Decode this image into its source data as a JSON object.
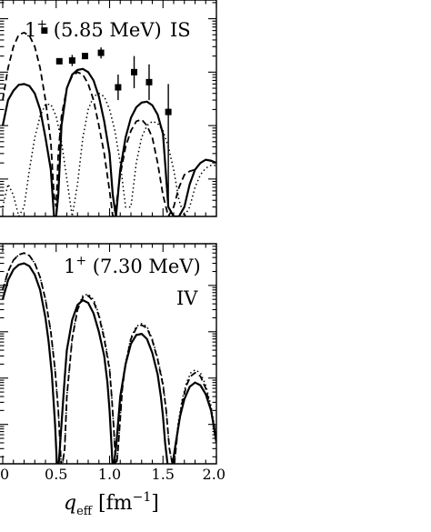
{
  "chart_data": [
    {
      "type": "line",
      "label_main": "1",
      "label_sup": "+",
      "label_rest": " (5.85 MeV)",
      "label_right": "IS",
      "x_range": [
        0.0,
        2.0
      ],
      "y_scale": "log",
      "series": [
        {
          "style": "solid",
          "x": [
            0.0,
            0.05,
            0.1,
            0.15,
            0.2,
            0.25,
            0.3,
            0.35,
            0.4,
            0.45,
            0.48,
            0.5,
            0.52,
            0.55,
            0.6,
            0.65,
            0.7,
            0.75,
            0.8,
            0.85,
            0.9,
            0.95,
            1.0,
            1.03,
            1.06,
            1.1,
            1.15,
            1.2,
            1.25,
            1.3,
            1.35,
            1.4,
            1.45,
            1.5,
            1.52,
            1.55,
            1.6,
            1.65,
            1.7,
            1.75,
            1.8,
            1.85,
            1.9,
            1.95,
            2.0
          ],
          "y": [
            0.01,
            0.03,
            0.045,
            0.058,
            0.06,
            0.055,
            0.04,
            0.02,
            0.006,
            0.0015,
            0.0002,
            0.0002,
            0.0005,
            0.01,
            0.05,
            0.09,
            0.11,
            0.115,
            0.1,
            0.07,
            0.035,
            0.012,
            0.003,
            0.0005,
            0.0002,
            0.0015,
            0.006,
            0.014,
            0.022,
            0.027,
            0.028,
            0.024,
            0.016,
            0.007,
            0.002,
            0.0003,
            0.0002,
            0.0002,
            0.0003,
            0.0008,
            0.0015,
            0.002,
            0.0023,
            0.0022,
            0.002
          ]
        },
        {
          "style": "dashed",
          "x": [
            0.0,
            0.05,
            0.1,
            0.15,
            0.2,
            0.25,
            0.3,
            0.35,
            0.4,
            0.45,
            0.48,
            0.5,
            0.52,
            0.55,
            0.6,
            0.65,
            0.7,
            0.75,
            0.8,
            0.85,
            0.9,
            0.95,
            1.0,
            1.03,
            1.06,
            1.1,
            1.15,
            1.2,
            1.25,
            1.3,
            1.35,
            1.4,
            1.45,
            1.5,
            1.55,
            1.6,
            1.65,
            1.7,
            1.75,
            1.8
          ],
          "y": [
            0.03,
            0.12,
            0.3,
            0.5,
            0.55,
            0.48,
            0.3,
            0.12,
            0.03,
            0.005,
            0.0005,
            0.0003,
            0.003,
            0.015,
            0.05,
            0.085,
            0.1,
            0.09,
            0.06,
            0.03,
            0.01,
            0.003,
            0.0006,
            0.0002,
            0.0003,
            0.0012,
            0.004,
            0.008,
            0.012,
            0.013,
            0.01,
            0.006,
            0.002,
            0.0005,
            0.0002,
            0.0003,
            0.0007,
            0.0012,
            0.0014,
            0.0015
          ]
        },
        {
          "style": "dotted",
          "x": [
            0.0,
            0.05,
            0.1,
            0.15,
            0.2,
            0.25,
            0.3,
            0.35,
            0.4,
            0.45,
            0.5,
            0.55,
            0.6,
            0.65,
            0.7,
            0.75,
            0.8,
            0.85,
            0.9,
            0.95,
            1.0,
            1.05,
            1.1,
            1.15,
            1.2,
            1.25,
            1.3,
            1.35,
            1.4,
            1.45,
            1.5,
            1.55,
            1.6,
            1.65,
            1.7,
            1.75,
            1.8,
            1.85,
            1.9,
            1.95,
            2.0
          ],
          "y": [
            0.0003,
            0.0008,
            0.0005,
            0.0002,
            0.0003,
            0.0015,
            0.006,
            0.015,
            0.025,
            0.025,
            0.015,
            0.005,
            0.001,
            0.0002,
            0.0008,
            0.006,
            0.02,
            0.035,
            0.04,
            0.035,
            0.02,
            0.008,
            0.002,
            0.0003,
            0.0003,
            0.002,
            0.006,
            0.01,
            0.012,
            0.011,
            0.008,
            0.004,
            0.0015,
            0.0004,
            0.0002,
            0.0003,
            0.0007,
            0.0012,
            0.0016,
            0.0018,
            0.0018
          ]
        }
      ],
      "data_points": [
        {
          "x": 0.39,
          "y": 0.6,
          "err": [
            0.54,
            0.67
          ]
        },
        {
          "x": 0.53,
          "y": 0.16,
          "err": [
            0.145,
            0.18
          ]
        },
        {
          "x": 0.65,
          "y": 0.165,
          "err": [
            0.13,
            0.21
          ]
        },
        {
          "x": 0.77,
          "y": 0.2,
          "err": [
            0.175,
            0.23
          ]
        },
        {
          "x": 0.92,
          "y": 0.23,
          "err": [
            0.18,
            0.29
          ]
        },
        {
          "x": 1.08,
          "y": 0.052,
          "err": [
            0.03,
            0.09
          ]
        },
        {
          "x": 1.23,
          "y": 0.1,
          "err": [
            0.05,
            0.2
          ]
        },
        {
          "x": 1.37,
          "y": 0.065,
          "err": [
            0.03,
            0.14
          ]
        },
        {
          "x": 1.55,
          "y": 0.018,
          "err": [
            0.0003,
            0.06
          ]
        }
      ]
    },
    {
      "type": "line",
      "label_main": "1",
      "label_sup": "+",
      "label_rest": " (7.30 MeV)",
      "label_right": "IV",
      "x_range": [
        0.0,
        2.0
      ],
      "y_scale": "log",
      "series": [
        {
          "style": "solid",
          "x": [
            0.0,
            0.05,
            0.1,
            0.15,
            0.2,
            0.25,
            0.3,
            0.35,
            0.4,
            0.43,
            0.46,
            0.49,
            0.51,
            0.52,
            0.55,
            0.58,
            0.6,
            0.65,
            0.7,
            0.75,
            0.8,
            0.85,
            0.9,
            0.95,
            0.98,
            1.0,
            1.02,
            1.03,
            1.06,
            1.1,
            1.15,
            1.2,
            1.25,
            1.3,
            1.35,
            1.4,
            1.45,
            1.48,
            1.5,
            1.52,
            1.55,
            1.58,
            1.62,
            1.66,
            1.7,
            1.75,
            1.8,
            1.85,
            1.9,
            1.95,
            1.98,
            2.0
          ],
          "y": [
            0.5,
            1.3,
            2.2,
            2.8,
            3.0,
            2.6,
            1.7,
            0.8,
            0.2,
            0.06,
            0.012,
            0.001,
            0.0001,
            0.0001,
            0.001,
            0.01,
            0.04,
            0.18,
            0.38,
            0.48,
            0.42,
            0.25,
            0.1,
            0.03,
            0.008,
            0.002,
            0.0003,
            0.0001,
            0.0003,
            0.004,
            0.02,
            0.055,
            0.085,
            0.09,
            0.07,
            0.035,
            0.012,
            0.004,
            0.0015,
            0.0004,
            0.0001,
            0.0001,
            0.0004,
            0.0015,
            0.0035,
            0.0065,
            0.008,
            0.007,
            0.0045,
            0.002,
            0.0008,
            0.0004
          ]
        },
        {
          "style": "dashed",
          "x": [
            0.0,
            0.05,
            0.1,
            0.15,
            0.2,
            0.25,
            0.3,
            0.35,
            0.4,
            0.45,
            0.49,
            0.52,
            0.55,
            0.58,
            0.6,
            0.65,
            0.7,
            0.75,
            0.8,
            0.85,
            0.9,
            0.95,
            1.0,
            1.02,
            1.04,
            1.06,
            1.08,
            1.12,
            1.15,
            1.2,
            1.25,
            1.3,
            1.35,
            1.4,
            1.45,
            1.5,
            1.53,
            1.56,
            1.6,
            1.64,
            1.68,
            1.72,
            1.76,
            1.8,
            1.85,
            1.9,
            1.95,
            2.0
          ],
          "y": [
            0.8,
            2.0,
            3.5,
            4.6,
            5.0,
            4.4,
            3.0,
            1.5,
            0.5,
            0.1,
            0.015,
            0.002,
            0.0001,
            0.0003,
            0.004,
            0.07,
            0.3,
            0.55,
            0.6,
            0.45,
            0.22,
            0.07,
            0.015,
            0.004,
            0.0008,
            0.0001,
            0.0003,
            0.006,
            0.02,
            0.07,
            0.12,
            0.14,
            0.12,
            0.065,
            0.025,
            0.007,
            0.002,
            0.0003,
            0.0001,
            0.0008,
            0.003,
            0.007,
            0.011,
            0.013,
            0.011,
            0.006,
            0.002,
            0.0004
          ]
        },
        {
          "style": "dotted",
          "x": [
            0.0,
            0.05,
            0.1,
            0.15,
            0.2,
            0.25,
            0.3,
            0.35,
            0.4,
            0.45,
            0.49,
            0.52,
            0.55,
            0.58,
            0.6,
            0.65,
            0.7,
            0.75,
            0.8,
            0.85,
            0.9,
            0.95,
            1.0,
            1.02,
            1.04,
            1.06,
            1.08,
            1.12,
            1.15,
            1.2,
            1.25,
            1.3,
            1.35,
            1.4,
            1.45,
            1.5,
            1.53,
            1.56,
            1.6,
            1.64,
            1.68,
            1.72,
            1.76,
            1.8,
            1.85,
            1.9,
            1.95,
            2.0
          ],
          "y": [
            0.8,
            2.0,
            3.5,
            4.6,
            5.0,
            4.4,
            3.0,
            1.5,
            0.5,
            0.1,
            0.015,
            0.002,
            0.0001,
            0.0003,
            0.004,
            0.075,
            0.32,
            0.6,
            0.65,
            0.5,
            0.24,
            0.08,
            0.017,
            0.004,
            0.0008,
            0.0001,
            0.0003,
            0.007,
            0.022,
            0.075,
            0.13,
            0.15,
            0.13,
            0.07,
            0.027,
            0.008,
            0.002,
            0.0003,
            0.0001,
            0.001,
            0.0035,
            0.008,
            0.013,
            0.015,
            0.013,
            0.007,
            0.0025,
            0.0005
          ]
        }
      ]
    }
  ],
  "x_ticks": [
    "0",
    "0.5",
    "1.0",
    "1.5",
    "2.0"
  ],
  "x_tick_values": [
    0,
    0.5,
    1.0,
    1.5,
    2.0
  ],
  "xlabel_q": "q",
  "xlabel_sub": "eff",
  "xlabel_unit": " [fm",
  "xlabel_exp": "−1",
  "xlabel_close": "]"
}
